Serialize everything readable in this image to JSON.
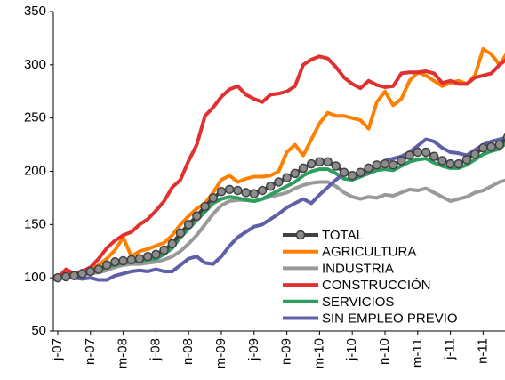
{
  "chart_data": {
    "type": "line",
    "categories": [
      "j-07",
      null,
      null,
      null,
      "n-07",
      null,
      null,
      null,
      "m-08",
      null,
      null,
      null,
      "j-08",
      null,
      null,
      null,
      "n-08",
      null,
      null,
      null,
      "m-09",
      null,
      null,
      null,
      "j-09",
      null,
      null,
      null,
      "n-09",
      null,
      null,
      null,
      "m-10",
      null,
      null,
      null,
      "j-10",
      null,
      null,
      null,
      "n-10",
      null,
      null,
      null,
      "m-11",
      null,
      null,
      null,
      "j-11",
      null,
      null,
      null,
      "n-11",
      null,
      null,
      null
    ],
    "series": [
      {
        "name": "TOTAL",
        "color": "#404040",
        "marker": true,
        "values": [
          100,
          101,
          102,
          104,
          106,
          108,
          112,
          115,
          116,
          117,
          118,
          120,
          122,
          126,
          132,
          142,
          150,
          158,
          167,
          175,
          181,
          183,
          182,
          180,
          179,
          182,
          186,
          190,
          194,
          198,
          203,
          207,
          209,
          209,
          205,
          199,
          196,
          199,
          203,
          206,
          207,
          206,
          210,
          215,
          218,
          218,
          214,
          210,
          207,
          207,
          211,
          216,
          222,
          223,
          225,
          232
        ]
      },
      {
        "name": "AGRICULTURA",
        "color": "#ff8000",
        "values": [
          100,
          106,
          103,
          102,
          108,
          112,
          118,
          126,
          138,
          120,
          125,
          127,
          130,
          133,
          140,
          150,
          158,
          165,
          170,
          180,
          192,
          196,
          190,
          193,
          195,
          195,
          196,
          200,
          218,
          225,
          215,
          230,
          245,
          255,
          252,
          252,
          250,
          248,
          240,
          265,
          275,
          262,
          268,
          285,
          293,
          290,
          285,
          280,
          283,
          285,
          282,
          290,
          315,
          310,
          300,
          312
        ]
      },
      {
        "name": "INDUSTRIA",
        "color": "#999999",
        "values": [
          100,
          101,
          102,
          103,
          104,
          105,
          107,
          110,
          112,
          113,
          113,
          114,
          115,
          117,
          120,
          125,
          132,
          140,
          150,
          160,
          168,
          172,
          173,
          173,
          172,
          174,
          176,
          178,
          180,
          184,
          187,
          189,
          190,
          190,
          186,
          180,
          176,
          174,
          176,
          175,
          178,
          177,
          180,
          183,
          182,
          184,
          180,
          176,
          172,
          174,
          176,
          180,
          182,
          186,
          190,
          192
        ]
      },
      {
        "name": "CONSTRUCCIÓN",
        "color": "#e03030",
        "values": [
          100,
          108,
          104,
          106,
          110,
          118,
          128,
          135,
          140,
          143,
          150,
          155,
          163,
          172,
          185,
          192,
          210,
          225,
          252,
          260,
          270,
          277,
          280,
          272,
          268,
          265,
          272,
          273,
          275,
          280,
          300,
          305,
          308,
          306,
          298,
          288,
          282,
          278,
          285,
          281,
          279,
          280,
          292,
          293,
          293,
          294,
          292,
          283,
          285,
          282,
          282,
          288,
          290,
          292,
          300,
          306
        ]
      },
      {
        "name": "SERVICIOS",
        "color": "#2e9e5e",
        "values": [
          100,
          101,
          101,
          103,
          105,
          107,
          110,
          112,
          114,
          115,
          116,
          117,
          118,
          122,
          128,
          138,
          146,
          154,
          162,
          170,
          174,
          176,
          175,
          173,
          172,
          174,
          178,
          182,
          186,
          190,
          196,
          200,
          202,
          202,
          198,
          193,
          192,
          195,
          198,
          201,
          202,
          201,
          205,
          209,
          211,
          212,
          208,
          205,
          203,
          203,
          206,
          211,
          216,
          219,
          221,
          228
        ]
      },
      {
        "name": "SIN EMPLEO PREVIO",
        "color": "#6060a8",
        "values": [
          100,
          101,
          100,
          99,
          100,
          98,
          98,
          102,
          104,
          106,
          107,
          106,
          108,
          106,
          106,
          112,
          118,
          120,
          114,
          113,
          120,
          130,
          138,
          143,
          148,
          150,
          155,
          160,
          166,
          170,
          174,
          170,
          178,
          185,
          192,
          198,
          198,
          196,
          200,
          205,
          210,
          212,
          214,
          218,
          224,
          230,
          228,
          222,
          218,
          217,
          215,
          220,
          225,
          228,
          230,
          232
        ]
      }
    ],
    "ylim": [
      50,
      350
    ],
    "yticks": [
      50,
      100,
      150,
      200,
      250,
      300,
      350
    ],
    "grid": false,
    "legend": "lower right"
  }
}
